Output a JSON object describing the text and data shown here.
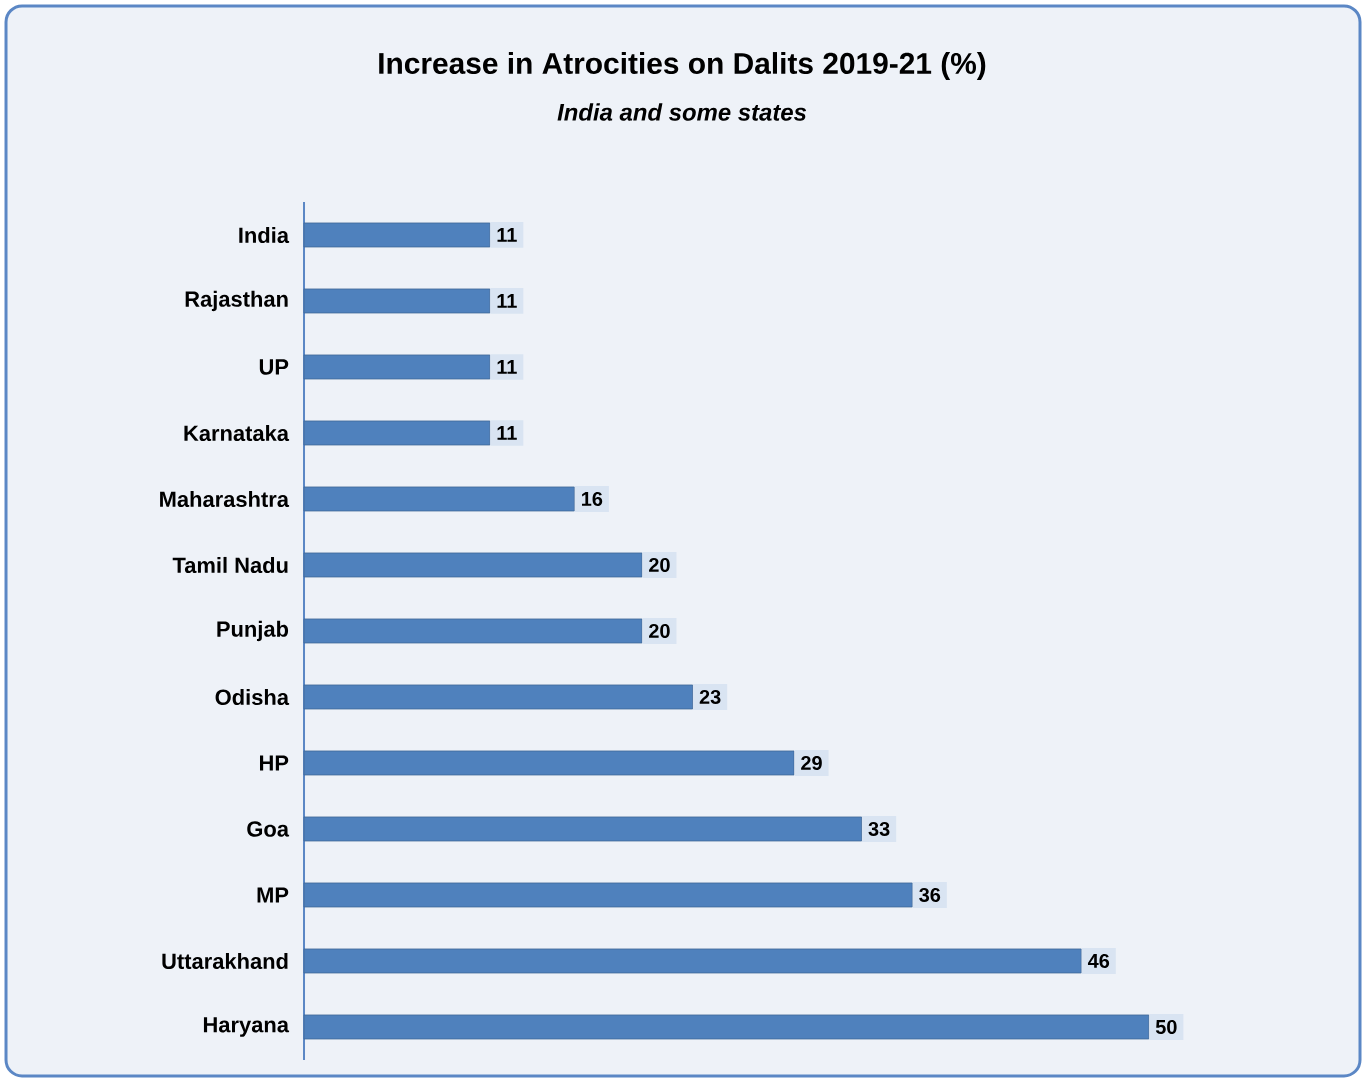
{
  "chart_data": {
    "type": "bar",
    "orientation": "horizontal",
    "title": "Increase in Atrocities on Dalits 2019-21 (%)",
    "subtitle": "India and some states",
    "categories": [
      "India",
      "Rajasthan",
      "UP",
      "Karnataka",
      "Maharashtra",
      "Tamil Nadu",
      "Punjab",
      "Odisha",
      "HP",
      "Goa",
      "MP",
      "Uttarakhand",
      "Haryana"
    ],
    "values": [
      11,
      11,
      11,
      11,
      16,
      20,
      20,
      23,
      29,
      33,
      36,
      46,
      50
    ],
    "color": "#4f81bd",
    "data_labels": true
  }
}
